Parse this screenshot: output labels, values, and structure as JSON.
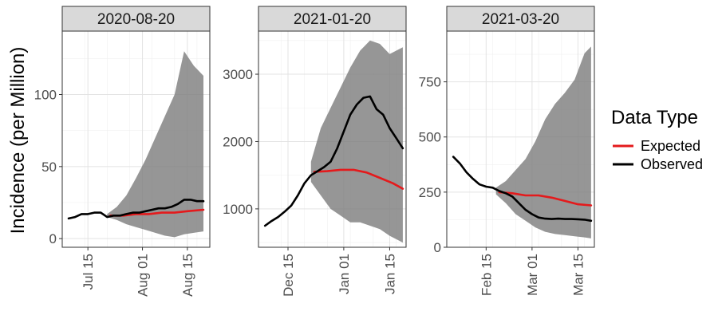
{
  "chart_data": {
    "type": "line",
    "ylabel": "Incidence (per Million)",
    "legend": {
      "title": "Data Type",
      "position": "right",
      "entries": [
        {
          "name": "Expected",
          "color": "#e41a1c"
        },
        {
          "name": "Observed",
          "color": "#000000"
        }
      ]
    },
    "band_color": "#7f7f7f",
    "panels": [
      {
        "title": "2020-08-20",
        "xlim": [
          "2020-07-07",
          "2020-08-22"
        ],
        "ylim": [
          -6,
          144
        ],
        "yticks": [
          0,
          50,
          100
        ],
        "xticks": [
          {
            "date": "2020-07-15",
            "label": "Jul 15"
          },
          {
            "date": "2020-08-01",
            "label": "Aug 01"
          },
          {
            "date": "2020-08-15",
            "label": "Aug 15"
          }
        ],
        "observed": {
          "x": [
            "2020-07-09",
            "2020-07-11",
            "2020-07-13",
            "2020-07-15",
            "2020-07-17",
            "2020-07-19",
            "2020-07-21",
            "2020-07-23",
            "2020-07-25",
            "2020-07-27",
            "2020-07-29",
            "2020-07-31",
            "2020-08-02",
            "2020-08-04",
            "2020-08-06",
            "2020-08-08",
            "2020-08-10",
            "2020-08-12",
            "2020-08-14",
            "2020-08-16",
            "2020-08-18",
            "2020-08-20"
          ],
          "y": [
            14,
            15,
            17,
            17,
            18,
            18,
            15,
            16,
            16,
            17,
            18,
            18,
            19,
            20,
            21,
            21,
            22,
            24,
            27,
            27,
            26,
            26
          ]
        },
        "expected": {
          "x": [
            "2020-07-22",
            "2020-07-26",
            "2020-07-30",
            "2020-08-03",
            "2020-08-07",
            "2020-08-11",
            "2020-08-15",
            "2020-08-20"
          ],
          "y": [
            16,
            16,
            17,
            17,
            18,
            18,
            19,
            20
          ]
        },
        "band": {
          "x": [
            "2020-07-21",
            "2020-07-24",
            "2020-07-27",
            "2020-07-30",
            "2020-08-02",
            "2020-08-05",
            "2020-08-08",
            "2020-08-11",
            "2020-08-14",
            "2020-08-17",
            "2020-08-20"
          ],
          "lower": [
            15,
            13,
            10,
            8,
            6,
            4,
            2,
            1,
            3,
            4,
            5
          ],
          "upper": [
            17,
            22,
            30,
            42,
            55,
            70,
            85,
            100,
            130,
            120,
            113
          ]
        }
      },
      {
        "title": "2021-01-20",
        "xlim": [
          "2020-12-06",
          "2021-01-20"
        ],
        "ylim": [
          430,
          3640
        ],
        "yticks": [
          1000,
          2000,
          3000
        ],
        "xticks": [
          {
            "date": "2020-12-15",
            "label": "Dec 15"
          },
          {
            "date": "2021-01-01",
            "label": "Jan 01"
          },
          {
            "date": "2021-01-15",
            "label": "Jan 15"
          }
        ],
        "observed": {
          "x": [
            "2020-12-08",
            "2020-12-10",
            "2020-12-12",
            "2020-12-14",
            "2020-12-16",
            "2020-12-18",
            "2020-12-20",
            "2020-12-22",
            "2020-12-24",
            "2020-12-26",
            "2020-12-28",
            "2020-12-30",
            "2021-01-01",
            "2021-01-03",
            "2021-01-05",
            "2021-01-07",
            "2021-01-09",
            "2021-01-11",
            "2021-01-13",
            "2021-01-15",
            "2021-01-17",
            "2021-01-19"
          ],
          "y": [
            750,
            820,
            880,
            960,
            1050,
            1200,
            1380,
            1500,
            1560,
            1620,
            1700,
            1900,
            2150,
            2400,
            2550,
            2650,
            2670,
            2480,
            2400,
            2200,
            2050,
            1900
          ]
        },
        "expected": {
          "x": [
            "2020-12-23",
            "2020-12-27",
            "2020-12-31",
            "2021-01-04",
            "2021-01-08",
            "2021-01-12",
            "2021-01-16",
            "2021-01-19"
          ],
          "y": [
            1550,
            1560,
            1580,
            1580,
            1540,
            1460,
            1380,
            1300
          ]
        },
        "band": {
          "x": [
            "2020-12-22",
            "2020-12-25",
            "2020-12-28",
            "2020-12-31",
            "2021-01-03",
            "2021-01-06",
            "2021-01-09",
            "2021-01-12",
            "2021-01-15",
            "2021-01-19"
          ],
          "lower": [
            1400,
            1200,
            1000,
            900,
            800,
            800,
            750,
            700,
            600,
            500
          ],
          "upper": [
            1700,
            2200,
            2500,
            2800,
            3100,
            3350,
            3500,
            3450,
            3300,
            3400
          ]
        }
      },
      {
        "title": "2021-03-20",
        "xlim": [
          "2021-02-03",
          "2021-03-20"
        ],
        "ylim": [
          0,
          980
        ],
        "yticks": [
          0,
          250,
          500,
          750
        ],
        "xticks": [
          {
            "date": "2021-02-15",
            "label": "Feb 15"
          },
          {
            "date": "2021-03-01",
            "label": "Mar 01"
          },
          {
            "date": "2021-03-15",
            "label": "Mar 15"
          }
        ],
        "observed": {
          "x": [
            "2021-02-05",
            "2021-02-07",
            "2021-02-09",
            "2021-02-11",
            "2021-02-13",
            "2021-02-15",
            "2021-02-17",
            "2021-02-19",
            "2021-02-21",
            "2021-02-23",
            "2021-02-25",
            "2021-02-27",
            "2021-03-01",
            "2021-03-03",
            "2021-03-05",
            "2021-03-07",
            "2021-03-09",
            "2021-03-11",
            "2021-03-13",
            "2021-03-15",
            "2021-03-17",
            "2021-03-19"
          ],
          "y": [
            410,
            380,
            340,
            310,
            285,
            275,
            270,
            255,
            245,
            230,
            200,
            170,
            150,
            135,
            130,
            128,
            130,
            128,
            128,
            127,
            125,
            120
          ]
        },
        "expected": {
          "x": [
            "2021-02-19",
            "2021-02-23",
            "2021-02-27",
            "2021-03-03",
            "2021-03-07",
            "2021-03-11",
            "2021-03-15",
            "2021-03-19"
          ],
          "y": [
            250,
            245,
            235,
            235,
            225,
            210,
            195,
            190
          ]
        },
        "band": {
          "x": [
            "2021-02-18",
            "2021-02-21",
            "2021-02-24",
            "2021-02-27",
            "2021-03-02",
            "2021-03-05",
            "2021-03-08",
            "2021-03-11",
            "2021-03-14",
            "2021-03-17",
            "2021-03-19"
          ],
          "lower": [
            240,
            200,
            150,
            120,
            90,
            70,
            60,
            55,
            50,
            45,
            40
          ],
          "upper": [
            270,
            300,
            350,
            400,
            480,
            580,
            650,
            700,
            760,
            880,
            910
          ]
        }
      }
    ]
  }
}
